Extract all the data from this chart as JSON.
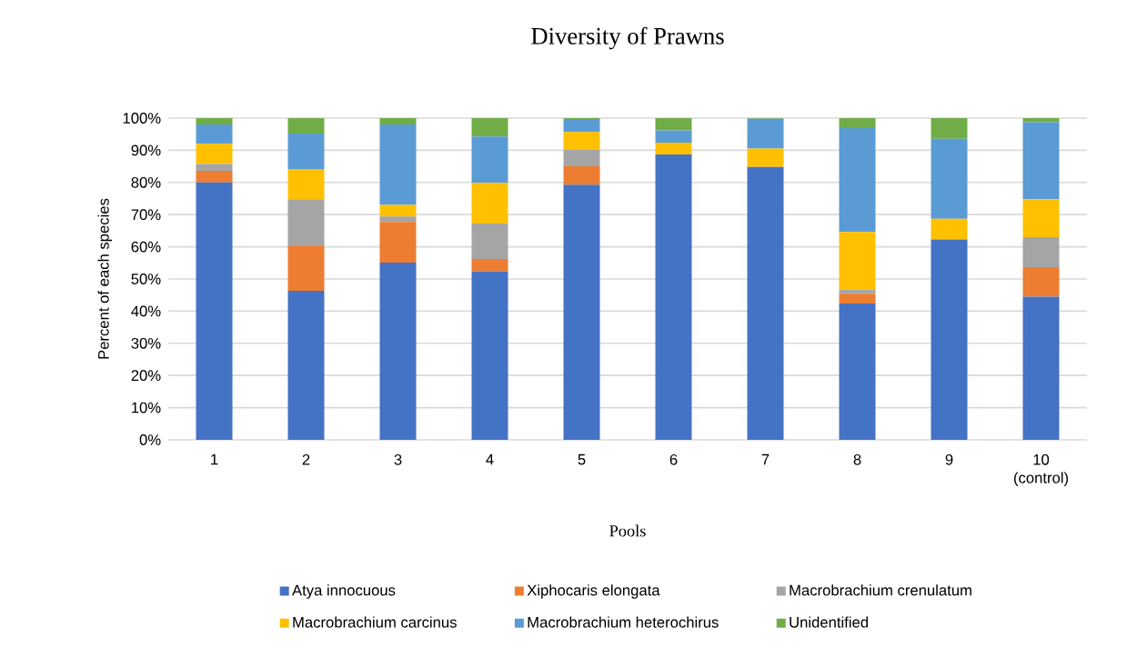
{
  "chart_data": {
    "type": "bar",
    "stacked": true,
    "title": "Diversity  of Prawns",
    "xlabel": "Pools",
    "ylabel": "Percent of each species",
    "categories": [
      "1",
      "2",
      "3",
      "4",
      "5",
      "6",
      "7",
      "8",
      "9",
      "10 (control)"
    ],
    "series": [
      {
        "name": "Atya innocuous",
        "color": "#4472c4",
        "values": [
          80.0,
          46.3,
          55.1,
          52.4,
          79.3,
          88.7,
          84.8,
          42.4,
          62.3,
          44.5
        ]
      },
      {
        "name": "Xiphocaris elongata",
        "color": "#ed7d31",
        "values": [
          3.6,
          14.1,
          12.6,
          3.8,
          5.7,
          0,
          0,
          3.0,
          0,
          9.2
        ]
      },
      {
        "name": "Macrobrachium crenulatum",
        "color": "#a5a5a5",
        "values": [
          2.1,
          14.4,
          1.7,
          11.0,
          5.1,
          0,
          0,
          1.3,
          0,
          9.3
        ]
      },
      {
        "name": "Macrobrachium carcinus",
        "color": "#ffc000",
        "values": [
          6.3,
          9.4,
          3.6,
          12.7,
          5.6,
          3.7,
          5.7,
          17.9,
          6.4,
          11.8
        ]
      },
      {
        "name": "Macrobrachium heterochirus",
        "color": "#5b9bd5",
        "values": [
          6.0,
          11.0,
          25.0,
          14.4,
          4.0,
          3.8,
          9.3,
          32.3,
          24.9,
          23.9
        ]
      },
      {
        "name": "Unidentified",
        "color": "#70ad47",
        "values": [
          2.0,
          4.8,
          2.0,
          5.7,
          0.3,
          3.8,
          0.2,
          3.1,
          6.4,
          1.3
        ]
      }
    ],
    "ylim": [
      0,
      100
    ],
    "yticks": [
      {
        "value": 0,
        "label": "0%"
      },
      {
        "value": 10,
        "label": "10%"
      },
      {
        "value": 20,
        "label": "20%"
      },
      {
        "value": 30,
        "label": "30%"
      },
      {
        "value": 40,
        "label": "40%"
      },
      {
        "value": 50,
        "label": "50%"
      },
      {
        "value": 60,
        "label": "60%"
      },
      {
        "value": 70,
        "label": "70%"
      },
      {
        "value": 80,
        "label": "80%"
      },
      {
        "value": 90,
        "label": "90%"
      },
      {
        "value": 100,
        "label": "100%"
      }
    ],
    "grid": "y",
    "legend": "bottom"
  }
}
